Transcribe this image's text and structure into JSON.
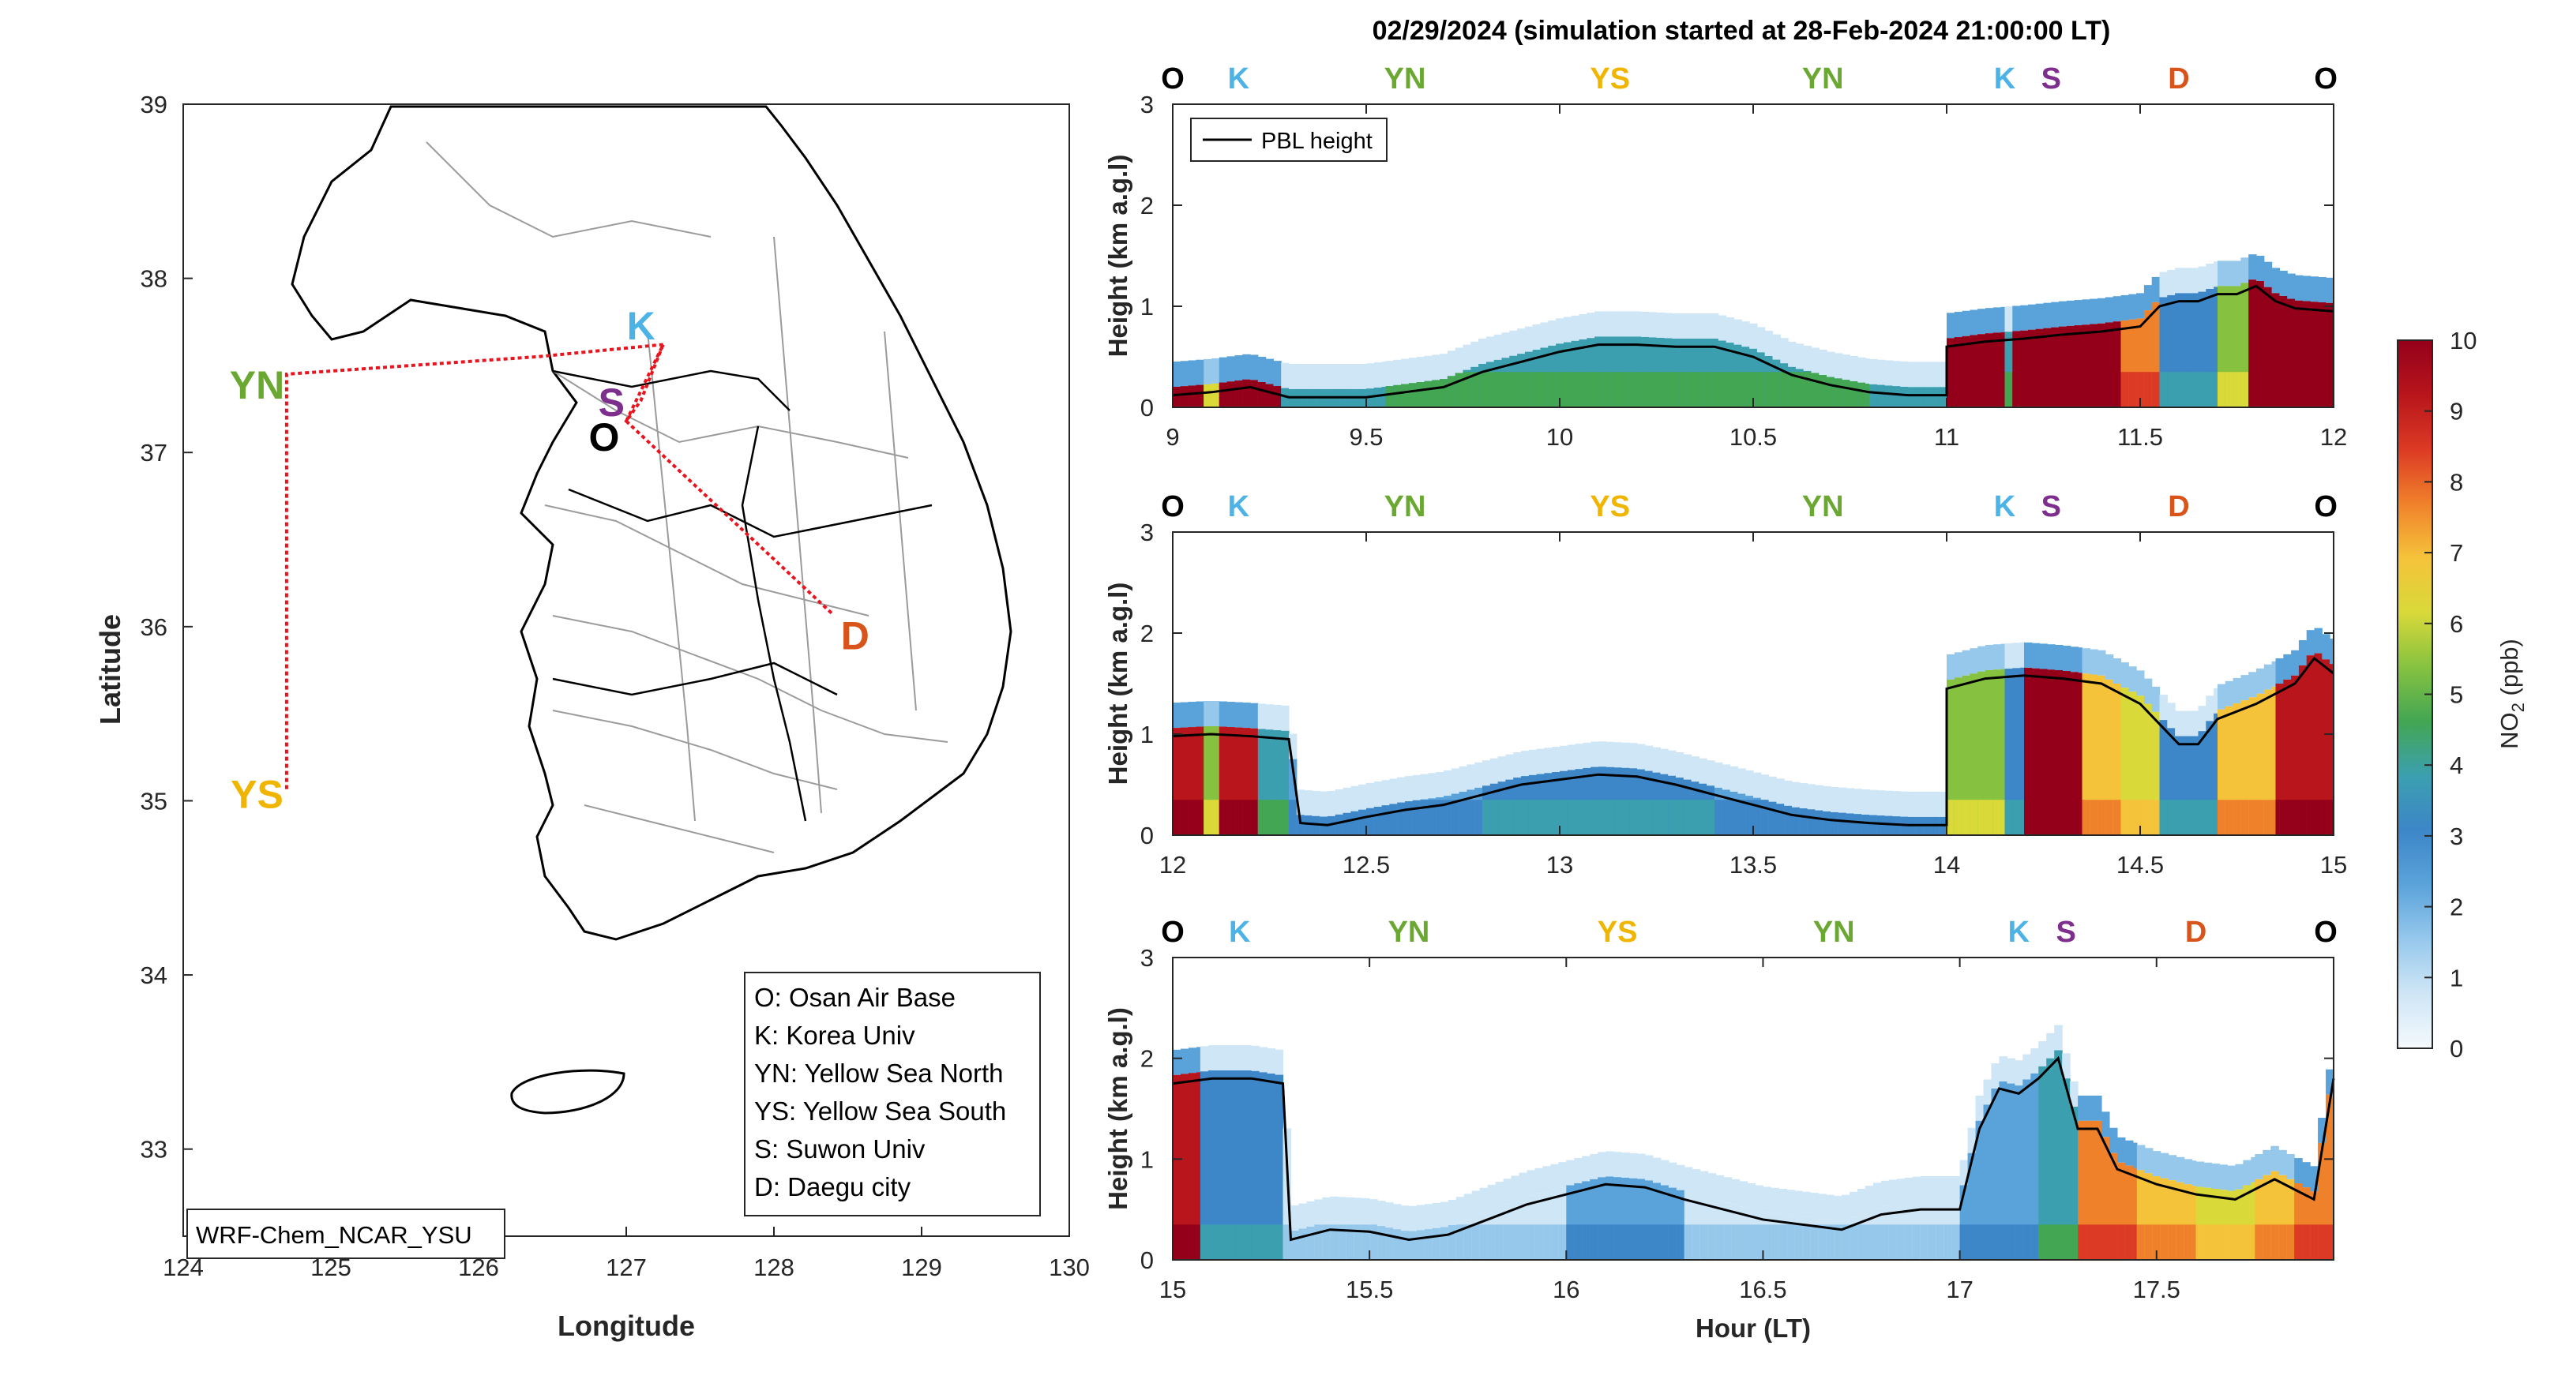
{
  "title": "02/29/2024 (simulation started at 28-Feb-2024 21:00:00 LT)",
  "colors": {
    "O": "#000000",
    "K": "#4db3e6",
    "YN": "#6aa832",
    "YS": "#f0b500",
    "S": "#7e2f8e",
    "D": "#d9541a",
    "route": "#e8141e",
    "pbl": "#000000",
    "colormap": [
      "#f4f9fd",
      "#cfe6f6",
      "#96c8ec",
      "#5aa3da",
      "#3d86c8",
      "#3b9fb0",
      "#43a653",
      "#86c240",
      "#d9d93a",
      "#f5c33a",
      "#f0812b",
      "#dc3a24",
      "#b8151c",
      "#94001a"
    ]
  },
  "map": {
    "xlabel": "Longitude",
    "ylabel": "Latitude",
    "xticks": [
      124,
      125,
      126,
      127,
      128,
      129,
      130
    ],
    "yticks": [
      33,
      34,
      35,
      36,
      37,
      38,
      39
    ],
    "xlim": [
      124,
      130
    ],
    "ylim": [
      32.5,
      39
    ],
    "model_label": "WRF-Chem_NCAR_YSU",
    "legend_lines": [
      "O: Osan Air Base",
      "K: Korea Univ",
      "YN: Yellow Sea North",
      "YS: Yellow Sea South",
      "S: Suwon Univ",
      "D: Daegu city"
    ],
    "sites": [
      {
        "code": "K",
        "lon": 127.1,
        "lat": 37.74
      },
      {
        "code": "S",
        "lon": 126.9,
        "lat": 37.3
      },
      {
        "code": "O",
        "lon": 126.85,
        "lat": 37.1
      },
      {
        "code": "YN",
        "lon": 124.5,
        "lat": 37.4
      },
      {
        "code": "YS",
        "lon": 124.5,
        "lat": 35.05
      },
      {
        "code": "D",
        "lon": 128.55,
        "lat": 35.96
      }
    ],
    "route": [
      [
        127.25,
        37.62
      ],
      [
        126.4,
        37.55
      ],
      [
        124.7,
        37.45
      ],
      [
        124.7,
        35.05
      ]
    ],
    "route2": [
      [
        127.0,
        37.18
      ],
      [
        127.25,
        37.62
      ],
      [
        127.1,
        37.3
      ],
      [
        127.0,
        37.18
      ],
      [
        128.4,
        36.07
      ]
    ]
  },
  "colorbar": {
    "label_main": "NO",
    "label_sub": "2",
    "label_unit": " (ppb)",
    "ticks": [
      0,
      1,
      2,
      3,
      4,
      5,
      6,
      7,
      8,
      9,
      10
    ],
    "range": [
      0,
      10
    ]
  },
  "panels": [
    {
      "id": "p1",
      "xlim": [
        9,
        12
      ],
      "xticks": [
        "9",
        "9.5",
        "10",
        "10.5",
        "11",
        "11.5",
        "12"
      ],
      "yticks": [
        "0",
        "1",
        "2",
        "3"
      ],
      "ylabel": "Height (km a.g.l)",
      "xlabel": "",
      "legend": "PBL height",
      "site_labels": [
        {
          "code": "O",
          "x": 9.0
        },
        {
          "code": "K",
          "x": 9.17
        },
        {
          "code": "YN",
          "x": 9.6
        },
        {
          "code": "YS",
          "x": 10.13
        },
        {
          "code": "YN",
          "x": 10.68
        },
        {
          "code": "K",
          "x": 11.15
        },
        {
          "code": "S",
          "x": 11.27
        },
        {
          "code": "D",
          "x": 11.6
        },
        {
          "code": "O",
          "x": 11.98
        }
      ],
      "pbl": [
        [
          9.0,
          0.12
        ],
        [
          9.1,
          0.15
        ],
        [
          9.2,
          0.2
        ],
        [
          9.3,
          0.1
        ],
        [
          9.5,
          0.1
        ],
        [
          9.6,
          0.15
        ],
        [
          9.7,
          0.2
        ],
        [
          9.8,
          0.35
        ],
        [
          9.9,
          0.45
        ],
        [
          10.0,
          0.55
        ],
        [
          10.1,
          0.62
        ],
        [
          10.2,
          0.62
        ],
        [
          10.3,
          0.6
        ],
        [
          10.4,
          0.6
        ],
        [
          10.5,
          0.5
        ],
        [
          10.6,
          0.32
        ],
        [
          10.7,
          0.22
        ],
        [
          10.8,
          0.15
        ],
        [
          10.9,
          0.12
        ],
        [
          11.0,
          0.12
        ],
        [
          11.0,
          0.6
        ],
        [
          11.1,
          0.65
        ],
        [
          11.2,
          0.68
        ],
        [
          11.3,
          0.72
        ],
        [
          11.4,
          0.75
        ],
        [
          11.5,
          0.8
        ],
        [
          11.55,
          1.0
        ],
        [
          11.6,
          1.05
        ],
        [
          11.65,
          1.05
        ],
        [
          11.7,
          1.12
        ],
        [
          11.75,
          1.12
        ],
        [
          11.8,
          1.2
        ],
        [
          11.85,
          1.05
        ],
        [
          11.9,
          0.98
        ],
        [
          12.0,
          0.95
        ]
      ],
      "no2_segments": [
        {
          "x0": 9.0,
          "x1": 9.08,
          "c": 9
        },
        {
          "x0": 9.08,
          "x1": 9.12,
          "c": 5
        },
        {
          "x0": 9.12,
          "x1": 9.28,
          "c": 9
        },
        {
          "x0": 9.28,
          "x1": 9.55,
          "c": 3
        },
        {
          "x0": 9.55,
          "x1": 9.95,
          "c": 4
        },
        {
          "x0": 9.95,
          "x1": 10.35,
          "c": 4
        },
        {
          "x0": 10.35,
          "x1": 10.8,
          "c": 4
        },
        {
          "x0": 10.8,
          "x1": 11.0,
          "c": 3
        },
        {
          "x0": 11.0,
          "x1": 11.15,
          "c": 10
        },
        {
          "x0": 11.15,
          "x1": 11.17,
          "c": 4
        },
        {
          "x0": 11.17,
          "x1": 11.45,
          "c": 10
        },
        {
          "x0": 11.45,
          "x1": 11.55,
          "c": 8
        },
        {
          "x0": 11.55,
          "x1": 11.7,
          "c": 3
        },
        {
          "x0": 11.7,
          "x1": 11.78,
          "c": 5
        },
        {
          "x0": 11.78,
          "x1": 12.0,
          "c": 10
        }
      ]
    },
    {
      "id": "p2",
      "xlim": [
        12,
        15
      ],
      "xticks": [
        "12",
        "12.5",
        "13",
        "13.5",
        "14",
        "14.5",
        "15"
      ],
      "yticks": [
        "0",
        "1",
        "2",
        "3"
      ],
      "ylabel": "Height (km a.g.l)",
      "xlabel": "",
      "site_labels": [
        {
          "code": "O",
          "x": 12.0
        },
        {
          "code": "K",
          "x": 12.17
        },
        {
          "code": "YN",
          "x": 12.6
        },
        {
          "code": "YS",
          "x": 13.13
        },
        {
          "code": "YN",
          "x": 13.68
        },
        {
          "code": "K",
          "x": 14.15
        },
        {
          "code": "S",
          "x": 14.27
        },
        {
          "code": "D",
          "x": 14.6
        },
        {
          "code": "O",
          "x": 14.98
        }
      ],
      "pbl": [
        [
          12.0,
          0.98
        ],
        [
          12.1,
          1.0
        ],
        [
          12.2,
          0.98
        ],
        [
          12.3,
          0.95
        ],
        [
          12.33,
          0.12
        ],
        [
          12.4,
          0.1
        ],
        [
          12.5,
          0.18
        ],
        [
          12.6,
          0.25
        ],
        [
          12.7,
          0.3
        ],
        [
          12.8,
          0.4
        ],
        [
          12.9,
          0.5
        ],
        [
          13.0,
          0.55
        ],
        [
          13.1,
          0.6
        ],
        [
          13.2,
          0.58
        ],
        [
          13.3,
          0.5
        ],
        [
          13.4,
          0.4
        ],
        [
          13.5,
          0.3
        ],
        [
          13.6,
          0.2
        ],
        [
          13.7,
          0.15
        ],
        [
          13.8,
          0.12
        ],
        [
          13.9,
          0.1
        ],
        [
          14.0,
          0.1
        ],
        [
          14.0,
          1.45
        ],
        [
          14.1,
          1.55
        ],
        [
          14.2,
          1.58
        ],
        [
          14.3,
          1.55
        ],
        [
          14.4,
          1.5
        ],
        [
          14.5,
          1.3
        ],
        [
          14.55,
          1.1
        ],
        [
          14.6,
          0.9
        ],
        [
          14.65,
          0.9
        ],
        [
          14.7,
          1.15
        ],
        [
          14.8,
          1.3
        ],
        [
          14.9,
          1.5
        ],
        [
          14.95,
          1.75
        ],
        [
          15.0,
          1.6
        ]
      ],
      "no2_segments": [
        {
          "x0": 12.0,
          "x1": 12.08,
          "c": 9
        },
        {
          "x0": 12.08,
          "x1": 12.12,
          "c": 5
        },
        {
          "x0": 12.12,
          "x1": 12.22,
          "c": 9
        },
        {
          "x0": 12.22,
          "x1": 12.3,
          "c": 4
        },
        {
          "x0": 12.3,
          "x1": 12.8,
          "c": 2
        },
        {
          "x0": 12.8,
          "x1": 13.4,
          "c": 3
        },
        {
          "x0": 13.4,
          "x1": 14.0,
          "c": 2
        },
        {
          "x0": 14.0,
          "x1": 14.15,
          "c": 5
        },
        {
          "x0": 14.15,
          "x1": 14.2,
          "c": 3
        },
        {
          "x0": 14.2,
          "x1": 14.35,
          "c": 10
        },
        {
          "x0": 14.35,
          "x1": 14.45,
          "c": 7
        },
        {
          "x0": 14.45,
          "x1": 14.55,
          "c": 6
        },
        {
          "x0": 14.55,
          "x1": 14.7,
          "c": 3
        },
        {
          "x0": 14.7,
          "x1": 14.85,
          "c": 7
        },
        {
          "x0": 14.85,
          "x1": 15.0,
          "c": 9
        }
      ]
    },
    {
      "id": "p3",
      "xlim": [
        15,
        17.95
      ],
      "xticks": [
        "15",
        "15.5",
        "16",
        "16.5",
        "17",
        "17.5"
      ],
      "yticks": [
        "0",
        "1",
        "2",
        "3"
      ],
      "ylabel": "Height (km a.g.l)",
      "xlabel": "Hour (LT)",
      "site_labels": [
        {
          "code": "O",
          "x": 15.0
        },
        {
          "code": "K",
          "x": 15.17
        },
        {
          "code": "YN",
          "x": 15.6
        },
        {
          "code": "YS",
          "x": 16.13
        },
        {
          "code": "YN",
          "x": 16.68
        },
        {
          "code": "K",
          "x": 17.15
        },
        {
          "code": "S",
          "x": 17.27
        },
        {
          "code": "D",
          "x": 17.6
        },
        {
          "code": "O",
          "x": 17.93
        }
      ],
      "pbl": [
        [
          15.0,
          1.75
        ],
        [
          15.1,
          1.8
        ],
        [
          15.2,
          1.8
        ],
        [
          15.28,
          1.75
        ],
        [
          15.3,
          0.2
        ],
        [
          15.4,
          0.3
        ],
        [
          15.5,
          0.28
        ],
        [
          15.6,
          0.2
        ],
        [
          15.7,
          0.25
        ],
        [
          15.8,
          0.4
        ],
        [
          15.9,
          0.55
        ],
        [
          16.0,
          0.65
        ],
        [
          16.1,
          0.75
        ],
        [
          16.2,
          0.72
        ],
        [
          16.3,
          0.6
        ],
        [
          16.4,
          0.5
        ],
        [
          16.5,
          0.4
        ],
        [
          16.6,
          0.35
        ],
        [
          16.7,
          0.3
        ],
        [
          16.8,
          0.45
        ],
        [
          16.9,
          0.5
        ],
        [
          17.0,
          0.5
        ],
        [
          17.05,
          1.3
        ],
        [
          17.1,
          1.7
        ],
        [
          17.15,
          1.65
        ],
        [
          17.2,
          1.8
        ],
        [
          17.25,
          2.0
        ],
        [
          17.3,
          1.3
        ],
        [
          17.35,
          1.3
        ],
        [
          17.4,
          0.9
        ],
        [
          17.5,
          0.75
        ],
        [
          17.6,
          0.65
        ],
        [
          17.7,
          0.6
        ],
        [
          17.8,
          0.8
        ],
        [
          17.9,
          0.6
        ],
        [
          17.95,
          1.8
        ]
      ],
      "no2_segments": [
        {
          "x0": 15.0,
          "x1": 15.07,
          "c": 9
        },
        {
          "x0": 15.07,
          "x1": 15.12,
          "c": 3
        },
        {
          "x0": 15.12,
          "x1": 15.28,
          "c": 3
        },
        {
          "x0": 15.28,
          "x1": 16.0,
          "c": 1
        },
        {
          "x0": 16.0,
          "x1": 16.3,
          "c": 2
        },
        {
          "x0": 16.3,
          "x1": 17.0,
          "c": 1
        },
        {
          "x0": 17.0,
          "x1": 17.2,
          "c": 2
        },
        {
          "x0": 17.2,
          "x1": 17.3,
          "c": 4
        },
        {
          "x0": 17.3,
          "x1": 17.45,
          "c": 8
        },
        {
          "x0": 17.45,
          "x1": 17.6,
          "c": 7
        },
        {
          "x0": 17.6,
          "x1": 17.75,
          "c": 6
        },
        {
          "x0": 17.75,
          "x1": 17.85,
          "c": 7
        },
        {
          "x0": 17.85,
          "x1": 17.95,
          "c": 8
        }
      ]
    }
  ]
}
